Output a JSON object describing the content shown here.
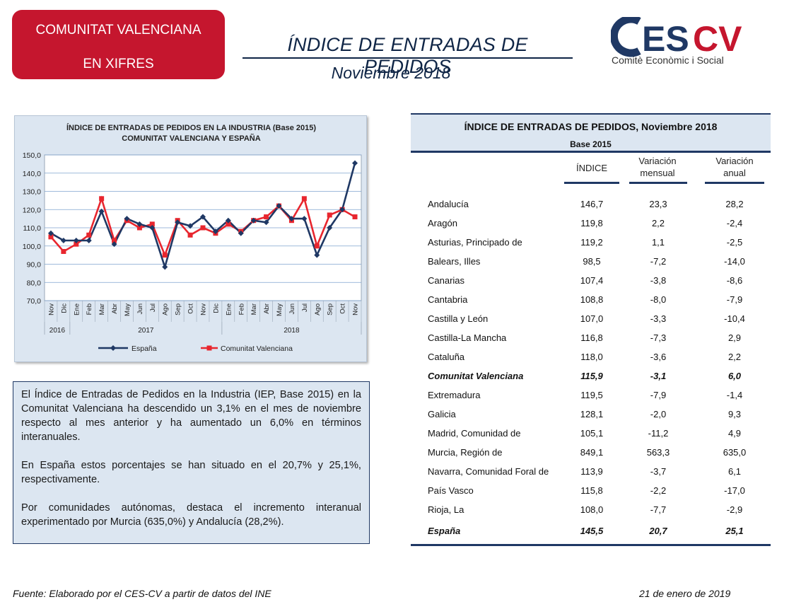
{
  "header": {
    "badge_line1": "COMUNITAT VALENCIANA",
    "badge_line2": "EN XIFRES",
    "title": "ÍNDICE DE ENTRADAS DE PEDIDOS",
    "subtitle": "Noviembre 2018",
    "logo_text": "CESCV",
    "logo_tagline": "Comitè Econòmic i Social"
  },
  "colors": {
    "brand_red": "#c5162e",
    "navy": "#1f3864",
    "panel_blue": "#dce6f1",
    "espana_line": "#1f3864",
    "cv_line": "#e8262e"
  },
  "chart_data": {
    "type": "line",
    "title": "ÍNDICE DE ENTRADAS DE PEDIDOS EN LA INDUSTRIA (Base 2015)",
    "subtitle": "COMUNITAT  VALENCIANA  Y ESPAÑA",
    "categories": [
      "Nov",
      "Dic",
      "Ene",
      "Feb",
      "Mar",
      "Abr",
      "May",
      "Jun",
      "Jul",
      "Ago",
      "Sep",
      "Oct",
      "Nov",
      "Dic",
      "Ene",
      "Feb",
      "Mar",
      "Abr",
      "May",
      "Jun",
      "Jul",
      "Ago",
      "Sep",
      "Oct",
      "Nov"
    ],
    "year_groups": [
      {
        "label": "2016",
        "count": 2
      },
      {
        "label": "2017",
        "count": 12
      },
      {
        "label": "2018",
        "count": 11
      }
    ],
    "series": [
      {
        "name": "España",
        "values": [
          107,
          103,
          103,
          103,
          119,
          101,
          115,
          112,
          110,
          88.5,
          113,
          111,
          116,
          108,
          114,
          107,
          114,
          113,
          122,
          115,
          115,
          95,
          110,
          120,
          145.5
        ]
      },
      {
        "name": "Comunitat Valenciana",
        "values": [
          105,
          97,
          101,
          106,
          126,
          103,
          114,
          110,
          112,
          95,
          114,
          106,
          110,
          107,
          112,
          108,
          114,
          116,
          122,
          114,
          126,
          100,
          117,
          120,
          116
        ]
      }
    ],
    "ylim": [
      70,
      150
    ],
    "yticks": [
      "70,0",
      "80,0",
      "90,0",
      "100,0",
      "110,0",
      "120,0",
      "130,0",
      "140,0",
      "150,0"
    ],
    "grid": true,
    "legend": "bottom"
  },
  "commentary": {
    "p1": "El Índice de Entradas de Pedidos en la Industria (IEP, Base 2015) en la Comunitat Valenciana ha descendido un 3,1% en el mes de noviembre respecto al mes anterior y ha aumentado un 6,0% en términos interanuales.",
    "p2": "En España estos porcentajes se han situado en el 20,7% y 25,1%, respectivamente.",
    "p3": "Por comunidades autónomas, destaca el incremento interanual experimentado por Murcia (635,0%) y Andalucía (28,2%)."
  },
  "table": {
    "title": "ÍNDICE DE ENTRADAS DE PEDIDOS, Noviembre 2018",
    "base": "Base 2015",
    "columns": {
      "c1": "ÍNDICE",
      "c2_l1": "Variación",
      "c2_l2": "mensual",
      "c3_l1": "Variación",
      "c3_l2": "anual"
    },
    "rows": [
      {
        "name": "Andalucía",
        "indice": "146,7",
        "mensual": "23,3",
        "anual": "28,2"
      },
      {
        "name": "Aragón",
        "indice": "119,8",
        "mensual": "2,2",
        "anual": "-2,4"
      },
      {
        "name": "Asturias, Principado de",
        "indice": "119,2",
        "mensual": "1,1",
        "anual": "-2,5"
      },
      {
        "name": "Balears, Illes",
        "indice": "98,5",
        "mensual": "-7,2",
        "anual": "-14,0"
      },
      {
        "name": "Canarias",
        "indice": "107,4",
        "mensual": "-3,8",
        "anual": "-8,6"
      },
      {
        "name": "Cantabria",
        "indice": "108,8",
        "mensual": "-8,0",
        "anual": "-7,9"
      },
      {
        "name": "Castilla y León",
        "indice": "107,0",
        "mensual": "-3,3",
        "anual": "-10,4"
      },
      {
        "name": "Castilla-La Mancha",
        "indice": "116,8",
        "mensual": "-7,3",
        "anual": "2,9"
      },
      {
        "name": "Cataluña",
        "indice": "118,0",
        "mensual": "-3,6",
        "anual": "2,2"
      },
      {
        "name": "Comunitat Valenciana",
        "indice": "115,9",
        "mensual": "-3,1",
        "anual": "6,0",
        "bold": true
      },
      {
        "name": "Extremadura",
        "indice": "119,5",
        "mensual": "-7,9",
        "anual": "-1,4"
      },
      {
        "name": "Galicia",
        "indice": "128,1",
        "mensual": "-2,0",
        "anual": "9,3"
      },
      {
        "name": "Madrid, Comunidad de",
        "indice": "105,1",
        "mensual": "-11,2",
        "anual": "4,9"
      },
      {
        "name": "Murcia, Región de",
        "indice": "849,1",
        "mensual": "563,3",
        "anual": "635,0"
      },
      {
        "name": "Navarra, Comunidad Foral de",
        "indice": "113,9",
        "mensual": "-3,7",
        "anual": "6,1"
      },
      {
        "name": "País Vasco",
        "indice": "115,8",
        "mensual": "-2,2",
        "anual": "-17,0"
      },
      {
        "name": "Rioja, La",
        "indice": "108,0",
        "mensual": "-7,7",
        "anual": "-2,9"
      }
    ],
    "total": {
      "name": "España",
      "indice": "145,5",
      "mensual": "20,7",
      "anual": "25,1"
    }
  },
  "footer": {
    "source": "Fuente: Elaborado por el CES-CV a partir de datos del INE",
    "date": "21 de enero de 2019"
  }
}
